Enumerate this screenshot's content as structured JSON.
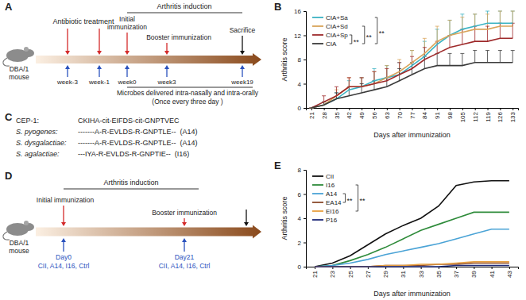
{
  "chart_data": [
    {
      "type": "line",
      "x_label": "Days after immunization",
      "y_label": "Arthritis score",
      "x": [
        21,
        28,
        35,
        42,
        49,
        56,
        63,
        70,
        77,
        84,
        91,
        98,
        105,
        112,
        119,
        126,
        133
      ],
      "xlim": [
        18,
        136
      ],
      "xticks": [
        21,
        28,
        35,
        42,
        49,
        56,
        63,
        70,
        77,
        84,
        91,
        98,
        105,
        112,
        119,
        126,
        133
      ],
      "ylim": [
        0,
        16
      ],
      "yticks": [
        0,
        4,
        8,
        12,
        16
      ],
      "legend": "upper left",
      "series": [
        {
          "name": "CIA+Sa",
          "color": "#3bb3c3",
          "values": [
            0,
            0.5,
            1.5,
            3,
            3.5,
            4.5,
            5,
            5.5,
            7,
            8.5,
            10.5,
            12,
            13,
            13.5,
            14,
            14,
            14
          ],
          "errors": [
            0,
            0.5,
            1,
            1.5,
            1.5,
            2,
            2,
            2,
            2.5,
            2.5,
            2.5,
            2.5,
            2.5,
            2,
            2,
            2,
            2
          ]
        },
        {
          "name": "CIA+Sd",
          "color": "#d9a45a",
          "values": [
            0,
            0.5,
            2,
            3.5,
            3.5,
            4,
            5,
            6,
            7.5,
            9,
            11,
            12,
            12.5,
            13,
            13,
            13.5,
            13.5
          ],
          "errors": [
            0,
            0.5,
            1,
            1.5,
            1.5,
            2,
            2,
            2,
            2,
            2.5,
            2.5,
            2.5,
            2.5,
            2.5,
            2.5,
            2.5,
            2.5
          ]
        },
        {
          "name": "CIA+Sp",
          "color": "#9e2a2b",
          "values": [
            0,
            1,
            2,
            3.5,
            3.5,
            4,
            4.5,
            5.5,
            6.5,
            8,
            9,
            10,
            10.5,
            11,
            11,
            11.5,
            11.5
          ],
          "errors": [
            0,
            1,
            1.5,
            1.5,
            1.5,
            2,
            2,
            2,
            2,
            2,
            2,
            2,
            2.5,
            2.5,
            2.5,
            2.5,
            2.5
          ]
        },
        {
          "name": "CIA",
          "color": "#3a3a3a",
          "values": [
            0,
            0.5,
            1.5,
            2,
            2.5,
            3,
            3.5,
            4.5,
            5.5,
            6.5,
            7,
            7,
            7,
            7.5,
            7.5,
            7.5,
            7.5
          ],
          "errors": [
            0,
            0.5,
            1,
            1.5,
            1.5,
            1.5,
            1.5,
            2,
            2,
            2,
            2,
            2,
            2,
            2,
            2,
            2,
            2
          ]
        }
      ],
      "annotations": [
        {
          "text": "**",
          "series": [
            "CIA+Sp",
            "CIA"
          ]
        },
        {
          "text": "**",
          "series": [
            "CIA+Sd",
            "CIA"
          ]
        },
        {
          "text": "**",
          "series": [
            "CIA+Sa",
            "CIA"
          ]
        }
      ]
    },
    {
      "type": "line",
      "x_label": "Days after immunization",
      "y_label": "Arthritis score",
      "x": [
        21,
        23,
        25,
        27,
        29,
        31,
        33,
        35,
        37,
        39,
        41,
        43
      ],
      "xlim": [
        20,
        44
      ],
      "xticks": [
        21,
        23,
        25,
        27,
        29,
        31,
        33,
        35,
        37,
        39,
        41,
        43
      ],
      "ylim": [
        0,
        8
      ],
      "yticks": [
        0,
        2,
        4,
        6,
        8
      ],
      "legend": "upper left",
      "series": [
        {
          "name": "CII",
          "color": "#111111",
          "values": [
            0,
            0.3,
            0.9,
            1.8,
            2.7,
            3.4,
            4,
            5,
            6.7,
            7,
            7.1,
            7.1
          ]
        },
        {
          "name": "I16",
          "color": "#2e8b3a",
          "values": [
            0,
            0.1,
            0.5,
            1,
            1.6,
            2.3,
            3,
            3.5,
            4,
            4.5,
            4.5,
            4.5
          ]
        },
        {
          "name": "A14",
          "color": "#4aa3d6",
          "values": [
            0,
            0.1,
            0.3,
            0.6,
            1,
            1.3,
            1.6,
            1.9,
            2.3,
            2.7,
            3.1,
            3.1
          ]
        },
        {
          "name": "EA14",
          "color": "#8b4a2b",
          "values": [
            0,
            0,
            0,
            0,
            0.1,
            0.1,
            0.1,
            0.2,
            0.2,
            0.3,
            0.3,
            0.3
          ]
        },
        {
          "name": "EI16",
          "color": "#e8a040",
          "values": [
            0,
            0,
            0,
            0,
            0.1,
            0.1,
            0.2,
            0.2,
            0.3,
            0.4,
            0.4,
            0.4
          ]
        },
        {
          "name": "P16",
          "color": "#1f2a7a",
          "values": [
            0,
            0,
            0,
            0,
            0,
            0,
            0,
            0,
            0.1,
            0.1,
            0.1,
            0.1
          ]
        }
      ],
      "annotations": [
        {
          "text": "**",
          "series": [
            "A14",
            "EA14"
          ]
        },
        {
          "text": "**",
          "series": [
            "I16",
            "EI16"
          ]
        }
      ]
    }
  ],
  "panel_labels": [
    "A",
    "B",
    "C",
    "D",
    "E"
  ],
  "panel_a": {
    "mouse": [
      "DBA/1",
      "mouse"
    ],
    "antibiotic_label": "Antibiotic treatment",
    "induction_label": "Arthritis induction",
    "initial": [
      "Initial",
      "immunization"
    ],
    "booster": "Booster immunization",
    "sacrifice": "Sacrifice",
    "weeks": [
      "week-3",
      "week-1",
      "week0",
      "week3",
      "week19"
    ],
    "microbes": "Microbes delivered intra-nasally and intra-orally",
    "microbes_note": "(Once every three day )"
  },
  "panel_c": {
    "rows": [
      {
        "name": "CEP-1:",
        "sequence": "CKIHA-cit-EIFDS-cit-GNPTVEC"
      },
      {
        "name": "S. pyogenes:",
        "sequence": "-------A-R-EVLDS-R-GNPTLE--",
        "peptide": "(A14)"
      },
      {
        "name": "S. dysgalactiae:",
        "sequence": "-------A-R-EVLDS-R-GNPTLE--",
        "peptide": "(A14)"
      },
      {
        "name": "S. agalactiae:",
        "sequence": "---IYA-R-EVLDS-R-GNPTIE--",
        "peptide": "(I16)"
      }
    ]
  },
  "panel_d": {
    "mouse": [
      "DBA/1",
      "mouse"
    ],
    "induction_label": "Arthritis induction",
    "initial": "Initial immunization",
    "booster": "Booster immunization",
    "days": [
      "Day0",
      "Day21"
    ],
    "groups": [
      "CII, A14, I16, Ctrl",
      "CII, A14, I16, Ctrl"
    ]
  }
}
